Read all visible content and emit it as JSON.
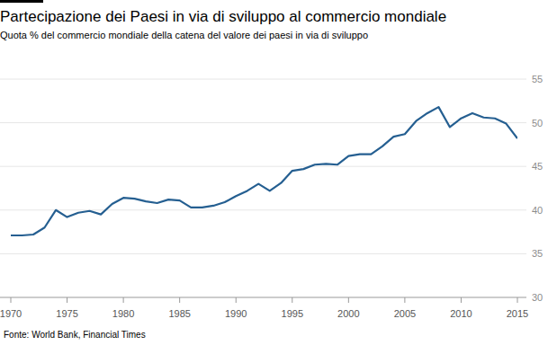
{
  "chart_data": {
    "type": "line",
    "title": "Partecipazione dei Paesi in via di sviluppo al commercio mondiale",
    "subtitle": "Quota % del commercio mondiale della catena del valore dei paesi in via di sviluppo",
    "source": "Fonte: World Bank, Financial Times",
    "x": [
      1970,
      1971,
      1972,
      1973,
      1974,
      1975,
      1976,
      1977,
      1978,
      1979,
      1980,
      1981,
      1982,
      1983,
      1984,
      1985,
      1986,
      1987,
      1988,
      1989,
      1990,
      1991,
      1992,
      1993,
      1994,
      1995,
      1996,
      1997,
      1998,
      1999,
      2000,
      2001,
      2002,
      2003,
      2004,
      2005,
      2006,
      2007,
      2008,
      2009,
      2010,
      2011,
      2012,
      2013,
      2014,
      2015
    ],
    "series": [
      {
        "name": "Quota",
        "color": "#255f91",
        "values": [
          37.1,
          37.1,
          37.2,
          38.0,
          40.0,
          39.2,
          39.7,
          39.9,
          39.5,
          40.7,
          41.4,
          41.3,
          41.0,
          40.8,
          41.2,
          41.1,
          40.3,
          40.3,
          40.5,
          40.9,
          41.6,
          42.2,
          43.0,
          42.2,
          43.1,
          44.5,
          44.7,
          45.2,
          45.3,
          45.2,
          46.2,
          46.4,
          46.4,
          47.3,
          48.4,
          48.7,
          50.2,
          51.1,
          51.8,
          49.5,
          50.5,
          51.1,
          50.6,
          50.5,
          49.9,
          48.2
        ]
      }
    ],
    "xlim": [
      1970,
      2015
    ],
    "xticks": [
      1970,
      1975,
      1980,
      1985,
      1990,
      1995,
      2000,
      2005,
      2010,
      2015
    ],
    "ylim": [
      30,
      55
    ],
    "yticks": [
      30,
      35,
      40,
      45,
      50,
      55
    ],
    "grid": true
  }
}
